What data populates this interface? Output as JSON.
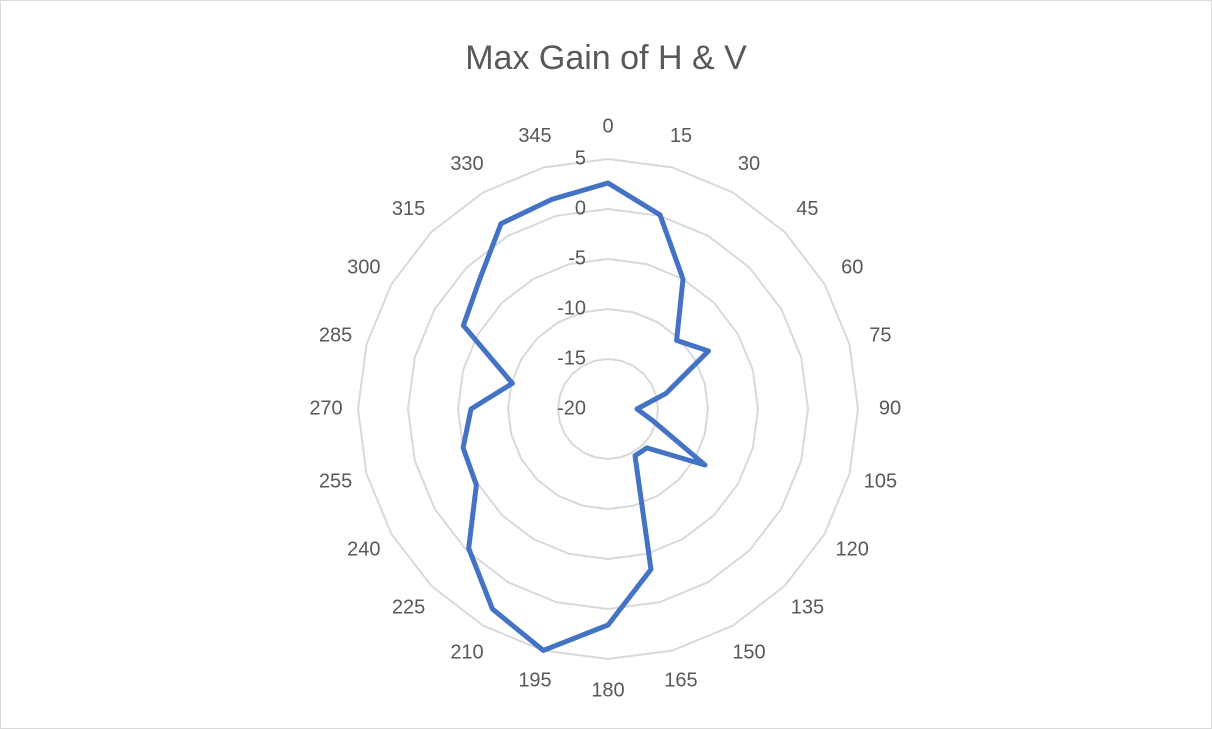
{
  "chart_data": {
    "type": "radar",
    "title": "Max Gain of H & V",
    "categories": [
      "0",
      "15",
      "30",
      "45",
      "60",
      "75",
      "90",
      "105",
      "120",
      "135",
      "150",
      "165",
      "180",
      "195",
      "210",
      "225",
      "240",
      "255",
      "270",
      "285",
      "300",
      "315",
      "330",
      "345"
    ],
    "series": [
      {
        "name": "Max Gain",
        "color": "#4472c4",
        "values": [
          2.6,
          0.1,
          -5,
          -10.3,
          -8.4,
          -14,
          -17.1,
          -15.3,
          -8.8,
          -14.5,
          -14.6,
          -3.4,
          1.6,
          5,
          3.1,
          -0.3,
          -4.8,
          -5,
          -6.3,
          -10.1,
          -3.3,
          -1.8,
          1.4,
          1.7
        ]
      }
    ],
    "ylim": [
      -20,
      5
    ],
    "yticks": [
      -20,
      -15,
      -10,
      -5,
      0,
      5
    ],
    "grid": true
  }
}
